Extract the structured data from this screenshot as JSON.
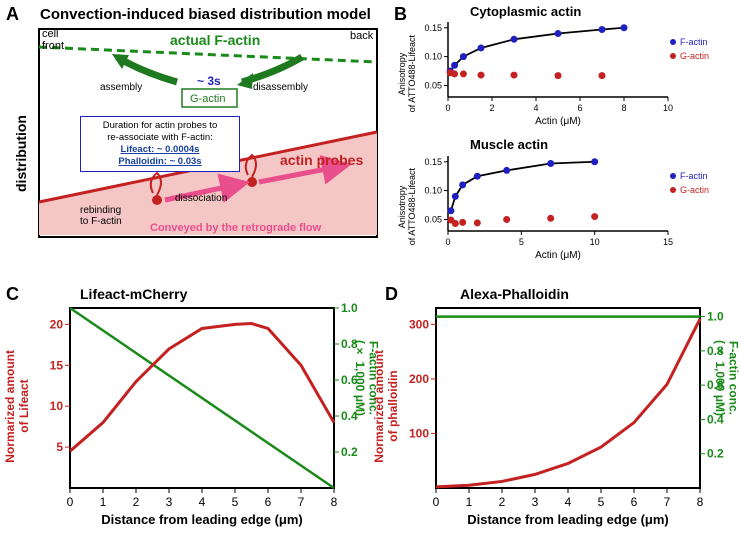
{
  "panelA": {
    "label": "A",
    "title": "Convection-induced biased distribution model",
    "cell_front": "cell\nfront",
    "back": "back",
    "actual_f_actin": "actual F-actin",
    "assembly": "assembly",
    "disassembly": "disassembly",
    "turnover_time": "~ 3s",
    "g_actin": "G-actin",
    "note_header": "Duration for actin probes to\nre-associate with F-actin:",
    "note_lifeact": "Lifeact: ~ 0.0004s",
    "note_phalloidin": "Phalloidin: ~ 0.03s",
    "actin_probes": "actin probes",
    "rebinding": "rebinding\nto F-actin",
    "dissociation": "dissociation",
    "conveyed": "Conveyed by the retrograde flow",
    "y_label": "distribution",
    "colors": {
      "green": "#1a8a1a",
      "dark_green": "#1f7a1f",
      "red": "#c42121",
      "blue": "#2020c0",
      "pink": "#e94f8c",
      "red_fill": "#f5c6c6",
      "note_blue": "#1840a0"
    }
  },
  "panelB": {
    "label": "B",
    "top": {
      "title": "Cytoplasmic actin",
      "x_label": "Actin (μM)",
      "y_label": "Anisotropy\nof ATTO488-Lifeact",
      "x_ticks": [
        0,
        2,
        4,
        6,
        8,
        10
      ],
      "y_ticks": [
        0.05,
        0.1,
        0.15
      ],
      "f_actin": [
        [
          0.1,
          0.075
        ],
        [
          0.3,
          0.085
        ],
        [
          0.7,
          0.1
        ],
        [
          1.5,
          0.115
        ],
        [
          3,
          0.13
        ],
        [
          5,
          0.14
        ],
        [
          7,
          0.147
        ],
        [
          8,
          0.15
        ]
      ],
      "g_actin": [
        [
          0.1,
          0.072
        ],
        [
          0.3,
          0.07
        ],
        [
          0.7,
          0.07
        ],
        [
          1.5,
          0.068
        ],
        [
          3,
          0.068
        ],
        [
          5,
          0.067
        ],
        [
          7,
          0.067
        ]
      ],
      "legend": [
        "F-actin",
        "G-actin"
      ]
    },
    "bottom": {
      "title": "Muscle actin",
      "x_label": "Actin (μM)",
      "y_label": "Anisotropy\nof ATTO488-Lifeact",
      "x_ticks": [
        0,
        5,
        10,
        15
      ],
      "y_ticks": [
        0.05,
        0.1,
        0.15
      ],
      "f_actin": [
        [
          0.2,
          0.065
        ],
        [
          0.5,
          0.09
        ],
        [
          1,
          0.11
        ],
        [
          2,
          0.125
        ],
        [
          4,
          0.135
        ],
        [
          7,
          0.147
        ],
        [
          10,
          0.15
        ]
      ],
      "g_actin": [
        [
          0.2,
          0.049
        ],
        [
          0.5,
          0.043
        ],
        [
          1,
          0.045
        ],
        [
          2,
          0.044
        ],
        [
          4,
          0.05
        ],
        [
          7,
          0.052
        ],
        [
          10,
          0.055
        ]
      ],
      "legend": [
        "F-actin",
        "G-actin"
      ]
    },
    "colors": {
      "blue": "#2020c0",
      "red": "#c42121"
    }
  },
  "panelC": {
    "label": "C",
    "title": "Lifeact-mCherry",
    "x_label": "Distance from leading edge (μm)",
    "y_left_label": "Normarized amount\nof Lifeact",
    "y_right_label": "F-actin conc.\n(× 1,000 μM)",
    "x_ticks": [
      0,
      1,
      2,
      3,
      4,
      5,
      6,
      7,
      8
    ],
    "y_left_ticks": [
      5,
      10,
      15,
      20
    ],
    "y_right_ticks": [
      0.2,
      0.4,
      0.6,
      0.8,
      1.0
    ],
    "red_curve": [
      [
        0,
        4.5
      ],
      [
        1,
        8
      ],
      [
        2,
        13
      ],
      [
        3,
        17
      ],
      [
        4,
        19.5
      ],
      [
        5,
        20
      ],
      [
        5.5,
        20.1
      ],
      [
        6,
        19.5
      ],
      [
        7,
        15
      ],
      [
        8,
        8
      ]
    ],
    "green_line": [
      [
        0,
        1.0
      ],
      [
        8,
        0
      ]
    ],
    "colors": {
      "red": "#c42121",
      "green": "#1a8a1a"
    }
  },
  "panelD": {
    "label": "D",
    "title": "Alexa-Phalloidin",
    "x_label": "Distance from leading edge (μm)",
    "y_left_label": "Normarized amount\nof phalloidin",
    "y_right_label": "F-actin conc.\n(× 1,000 μM)",
    "x_ticks": [
      0,
      1,
      2,
      3,
      4,
      5,
      6,
      7,
      8
    ],
    "y_left_ticks": [
      100,
      200,
      300
    ],
    "y_right_ticks": [
      0.2,
      0.4,
      0.6,
      0.8,
      1.0
    ],
    "red_curve": [
      [
        0,
        2
      ],
      [
        1,
        5
      ],
      [
        2,
        12
      ],
      [
        3,
        25
      ],
      [
        4,
        45
      ],
      [
        5,
        75
      ],
      [
        6,
        120
      ],
      [
        7,
        190
      ],
      [
        8,
        310
      ]
    ],
    "green_line": [
      [
        0,
        1.0
      ],
      [
        8,
        1.0
      ]
    ],
    "colors": {
      "red": "#c42121",
      "green": "#1a8a1a"
    }
  }
}
